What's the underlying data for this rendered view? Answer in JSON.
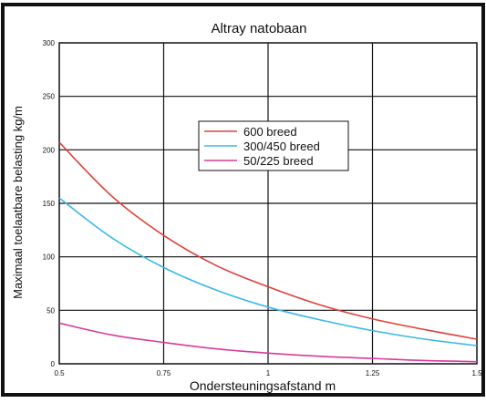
{
  "chart_data": {
    "type": "line",
    "title": "Altray natobaan",
    "xlabel": "Ondersteuningsafstand m",
    "ylabel": "Maximaal toelaatbare belasting kg/m",
    "xlim": [
      0.5,
      1.5
    ],
    "ylim": [
      0,
      300
    ],
    "x_ticks": [
      "0.5",
      "0.75",
      "1",
      "1.25",
      "1.5"
    ],
    "y_ticks": [
      "0",
      "50",
      "100",
      "150",
      "200",
      "250",
      "300"
    ],
    "grid": true,
    "legend_position": "center",
    "x": [
      0.5,
      0.625,
      0.75,
      0.875,
      1.0,
      1.125,
      1.25,
      1.375,
      1.5
    ],
    "series": [
      {
        "name": "600 breed",
        "color": "#e0403a",
        "values": [
          207,
          157,
          120,
          92,
          72,
          55,
          42,
          32,
          23
        ]
      },
      {
        "name": "300/450 breed",
        "color": "#3bb8e3",
        "values": [
          155,
          118,
          90,
          69,
          53,
          41,
          31,
          23,
          17
        ]
      },
      {
        "name": "50/225 breed",
        "color": "#d83a9c",
        "values": [
          38,
          27,
          20,
          14,
          10,
          7,
          5,
          3,
          2
        ]
      }
    ]
  }
}
